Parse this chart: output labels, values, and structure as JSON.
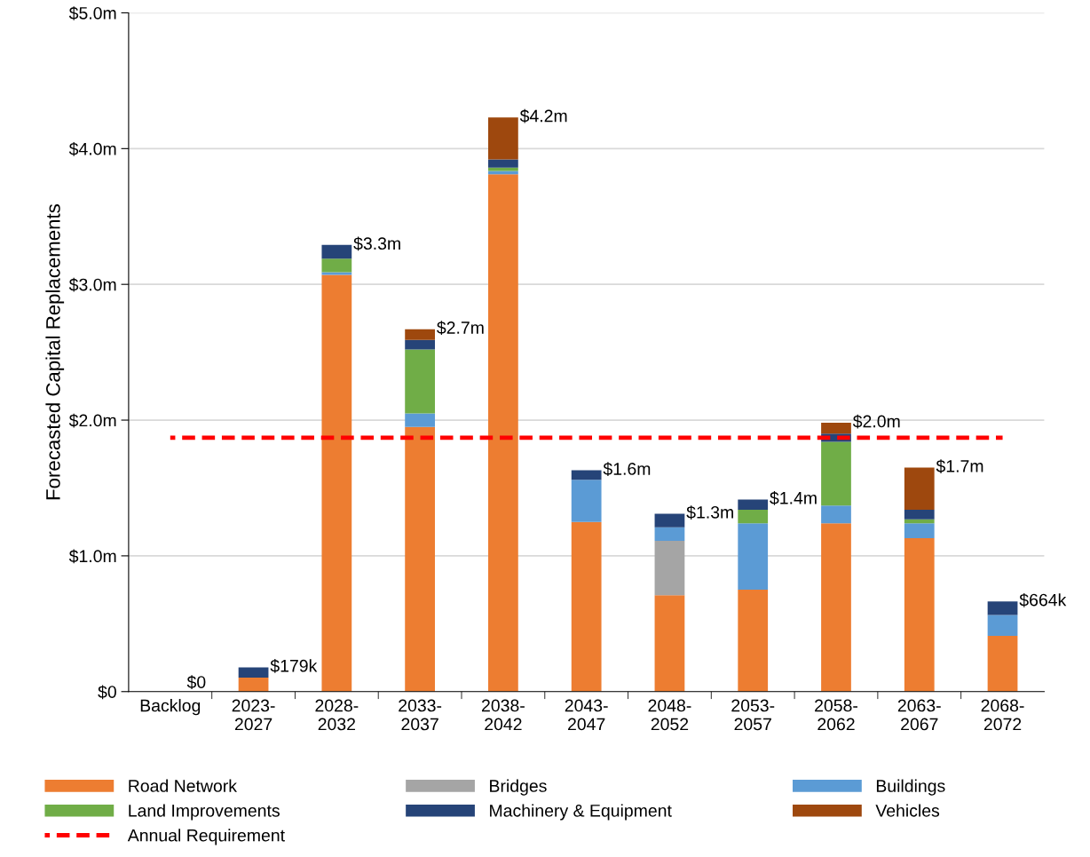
{
  "chart_data": {
    "type": "bar",
    "stacked": true,
    "ylabel": "Forecasted Capital Replacements",
    "categories": [
      "Backlog",
      "2023-\n2027",
      "2028-\n2032",
      "2033-\n2037",
      "2038-\n2042",
      "2043-\n2047",
      "2048-\n2052",
      "2053-\n2057",
      "2058-\n2062",
      "2063-\n2067",
      "2068-\n2072"
    ],
    "series": [
      {
        "name": "Road Network",
        "color": "#ed7d31",
        "values": [
          0,
          0.103,
          3.07,
          1.95,
          3.81,
          1.25,
          0.71,
          0.75,
          1.24,
          1.13,
          0.41
        ]
      },
      {
        "name": "Bridges",
        "color": "#a5a5a5",
        "values": [
          0,
          0,
          0,
          0,
          0,
          0,
          0.4,
          0,
          0,
          0,
          0
        ]
      },
      {
        "name": "Buildings",
        "color": "#5b9bd5",
        "values": [
          0,
          0,
          0.02,
          0.1,
          0.025,
          0.31,
          0.1,
          0.49,
          0.13,
          0.11,
          0.155
        ]
      },
      {
        "name": "Land Improvements",
        "color": "#70ad47",
        "values": [
          0,
          0,
          0.1,
          0.47,
          0.025,
          0,
          0,
          0.1,
          0.47,
          0.03,
          0
        ]
      },
      {
        "name": "Machinery & Equipment",
        "color": "#264478",
        "values": [
          0,
          0.076,
          0.1,
          0.07,
          0.06,
          0.07,
          0.1,
          0.075,
          0.06,
          0.07,
          0.099
        ]
      },
      {
        "name": "Vehicles",
        "color": "#9e480e",
        "values": [
          0,
          0,
          0,
          0.08,
          0.31,
          0,
          0,
          0,
          0.08,
          0.31,
          0
        ]
      },
      {
        "name": "Annual Requirement",
        "type": "line",
        "color": "#ff0000",
        "line_style": "dashed",
        "values": [
          1.87,
          1.87,
          1.87,
          1.87,
          1.87,
          1.87,
          1.87,
          1.87,
          1.87,
          1.87,
          1.87
        ]
      }
    ],
    "totals": [
      "$0",
      "$179k",
      "$3.3m",
      "$2.7m",
      "$4.2m",
      "$1.6m",
      "$1.3m",
      "$1.4m",
      "$2.0m",
      "$1.7m",
      "$664k"
    ],
    "ylim": [
      0,
      5
    ],
    "yticks": [
      {
        "value": 0,
        "label": "$0"
      },
      {
        "value": 1,
        "label": "$1.0m"
      },
      {
        "value": 2,
        "label": "$2.0m"
      },
      {
        "value": 3,
        "label": "$3.0m"
      },
      {
        "value": 4,
        "label": "$4.0m"
      },
      {
        "value": 5,
        "label": "$5.0m"
      }
    ],
    "grid": "y",
    "legend": "bottom"
  }
}
